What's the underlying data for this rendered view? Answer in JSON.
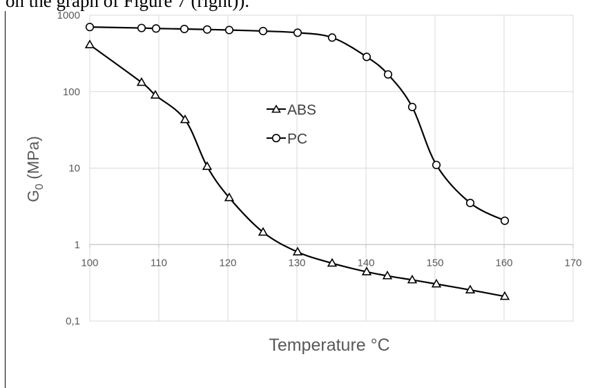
{
  "caption_fragment": "on the graph of Figure 7 (right)).",
  "chart_data": {
    "type": "line",
    "xlabel": "Temperature °C",
    "ylabel_main": "G",
    "ylabel_sub": "0",
    "ylabel_unit": " (MPa)",
    "xlim": [
      100,
      170
    ],
    "xticks": [
      100,
      110,
      120,
      130,
      140,
      150,
      160,
      170
    ],
    "ylim": [
      0.1,
      1000
    ],
    "yscale": "log",
    "yticks": [
      {
        "value": 0.1,
        "label": "0,1"
      },
      {
        "value": 1,
        "label": "1"
      },
      {
        "value": 10,
        "label": "10"
      },
      {
        "value": 100,
        "label": "100"
      },
      {
        "value": 1000,
        "label": "1000"
      }
    ],
    "grid": true,
    "legend_position": "center-left",
    "series": [
      {
        "name": "ABS",
        "marker": "triangle",
        "color": "#000000",
        "x": [
          100,
          107.5,
          109.5,
          113.8,
          117,
          120.2,
          125.1,
          130.1,
          135.1,
          140.1,
          143.1,
          146.7,
          150.2,
          155.1,
          160.1
        ],
        "y": [
          410,
          132,
          90,
          43,
          10.5,
          4.1,
          1.45,
          0.8,
          0.57,
          0.44,
          0.39,
          0.345,
          0.305,
          0.255,
          0.21
        ]
      },
      {
        "name": "PC",
        "marker": "circle",
        "color": "#000000",
        "x": [
          100,
          107.5,
          109.6,
          113.7,
          117,
          120.2,
          125.1,
          130.1,
          135.1,
          140.1,
          143.2,
          146.7,
          150.2,
          155.1,
          160.1
        ],
        "y": [
          700,
          680,
          670,
          660,
          650,
          640,
          620,
          590,
          510,
          285,
          168,
          63,
          11,
          3.5,
          2.05
        ]
      }
    ]
  }
}
